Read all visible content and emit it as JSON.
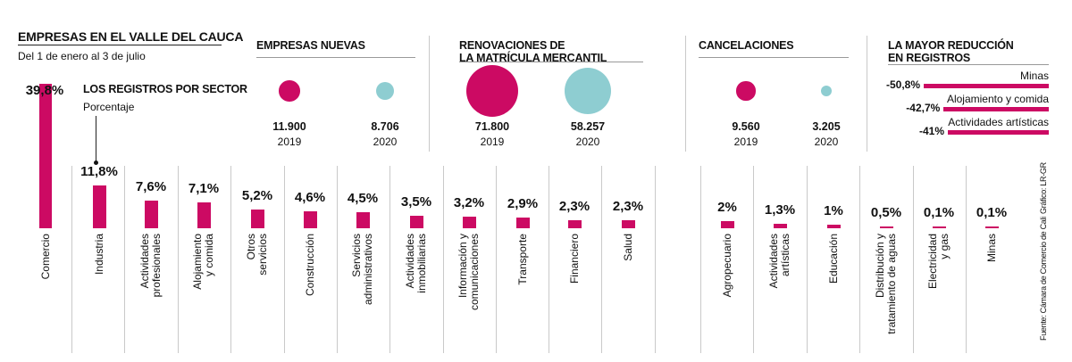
{
  "header": {
    "title": "EMPRESAS EN EL VALLE DEL CAUCA",
    "subtitle": "Del 1 de enero al 3 de julio"
  },
  "colors": {
    "magenta": "#cc0a63",
    "teal": "#8ecdd1",
    "text": "#111111"
  },
  "chart_data": [
    {
      "type": "bubble",
      "title": "EMPRESAS NUEVAS",
      "points": [
        {
          "value_label": "11.900",
          "value": 11900,
          "year": "2019",
          "color": "#cc0a63"
        },
        {
          "value_label": "8.706",
          "value": 8706,
          "year": "2020",
          "color": "#8ecdd1"
        }
      ]
    },
    {
      "type": "bubble",
      "title_lines": [
        "RENOVACIONES DE",
        "LA MATRÍCULA MERCANTIL"
      ],
      "points": [
        {
          "value_label": "71.800",
          "value": 71800,
          "year": "2019",
          "color": "#cc0a63"
        },
        {
          "value_label": "58.257",
          "value": 58257,
          "year": "2020",
          "color": "#8ecdd1"
        }
      ]
    },
    {
      "type": "bubble",
      "title": "CANCELACIONES",
      "points": [
        {
          "value_label": "9.560",
          "value": 9560,
          "year": "2019",
          "color": "#cc0a63"
        },
        {
          "value_label": "3.205",
          "value": 3205,
          "year": "2020",
          "color": "#8ecdd1"
        }
      ]
    },
    {
      "type": "bar",
      "orientation": "horizontal",
      "title_lines": [
        "LA MAYOR REDUCCIÓN",
        "EN REGISTROS"
      ],
      "categories": [
        "Minas",
        "Alojamiento y comida",
        "Actividades artísticas"
      ],
      "values": [
        -50.8,
        -42.7,
        -41
      ],
      "value_labels": [
        "-50,8%",
        "-42,7%",
        "-41%"
      ],
      "unit": "%"
    },
    {
      "type": "bar",
      "orientation": "vertical",
      "title": "LOS REGISTROS POR SECTOR",
      "ylabel": "Porcentaje",
      "unit": "%",
      "categories": [
        [
          "Comercio"
        ],
        [
          "Industria"
        ],
        [
          "Actividades",
          "profesionales"
        ],
        [
          "Alojamiento",
          "y comida"
        ],
        [
          "Otros",
          "servicios"
        ],
        [
          "Construcción"
        ],
        [
          "Servicios",
          "administrativos"
        ],
        [
          "Actividades",
          "inmobiliarias"
        ],
        [
          "Información y",
          "comunicaciones"
        ],
        [
          "Transporte"
        ],
        [
          "Financiero"
        ],
        [
          "Salud"
        ],
        [
          "Agropecuario"
        ],
        [
          "Actividades",
          "artísticas"
        ],
        [
          "Educación"
        ],
        [
          "Distribución y",
          "tratamiento de aguas"
        ],
        [
          "Electricidad",
          "y gas"
        ],
        [
          "Minas"
        ]
      ],
      "values": [
        39.8,
        11.8,
        7.6,
        7.1,
        5.2,
        4.6,
        4.5,
        3.5,
        3.2,
        2.9,
        2.3,
        2.3,
        2,
        1.3,
        1,
        0.5,
        0.1,
        0.1
      ],
      "value_labels": [
        "39,8%",
        "11,8%",
        "7,6%",
        "7,1%",
        "5,2%",
        "4,6%",
        "4,5%",
        "3,5%",
        "3,2%",
        "2,9%",
        "2,3%",
        "2,3%",
        "2%",
        "1,3%",
        "1%",
        "0,5%",
        "0,1%",
        "0,1%"
      ]
    }
  ],
  "footer": {
    "source": "Fuente: Cámara de Comercio de Cali",
    "credit": "Gráfico: LR-GR"
  }
}
